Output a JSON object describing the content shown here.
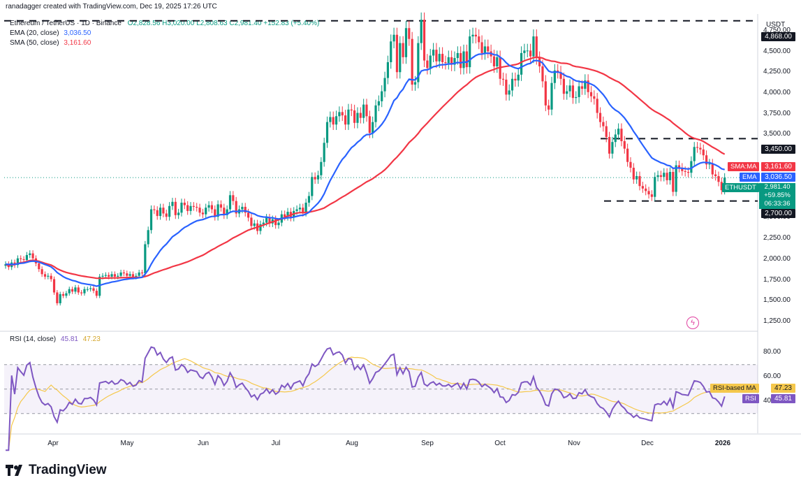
{
  "header": {
    "created_by": "ranadagger created with TradingView.com, Dec 19, 2025 17:26 UTC",
    "symbol_line": "Ethereum / TetherUS · 1D · Binance",
    "ohlc": "O2,828.56  H3,020.00  L2,808.63  C2,981.40  +152.83 (+5.40%)",
    "ema_label": "EMA (20, close)",
    "ema_value": "3,036.50",
    "sma_label": "SMA (50, close)",
    "sma_value": "3,161.60"
  },
  "axis": {
    "currency": "USDT",
    "price_ticks": [
      "4,750.00",
      "4,500.00",
      "4,250.00",
      "4,000.00",
      "3,750.00",
      "3,500.00",
      "2,500.00",
      "2,250.00",
      "2,000.00",
      "1,750.00",
      "1,500.00",
      "1,250.00"
    ],
    "rsi_ticks": [
      "80.00",
      "60.00",
      "40.00"
    ],
    "x_ticks": [
      "Apr",
      "May",
      "Jun",
      "Jul",
      "Aug",
      "Sep",
      "Oct",
      "Nov",
      "Dec",
      "2026"
    ]
  },
  "price_labels": {
    "level_high": "4,868.00",
    "level_resist": "3,450.00",
    "level_support": "2,700.00",
    "sma_tag": "SMA:MA",
    "sma_val": "3,161.60",
    "ema_tag": "EMA",
    "ema_val": "3,036.50",
    "sym_tag": "ETHUSDT",
    "sym_val": "2,981.40",
    "change": "+59.85%",
    "countdown": "06:33:36"
  },
  "rsi_panel": {
    "label": "RSI (14, close)",
    "value1": "45.81",
    "value2": "47.23",
    "ma_tag": "RSI-based MA",
    "ma_val": "47.23",
    "rsi_tag": "RSI",
    "rsi_val": "45.81"
  },
  "brand": {
    "name": "TradingView"
  },
  "colors": {
    "up": "#089981",
    "down": "#f23645",
    "ema": "#2962ff",
    "sma": "#f23645",
    "rsi": "#7e57c2",
    "rsi_ma": "#f5c84c"
  },
  "chart_data": {
    "type": "candlestick",
    "symbol": "ETHUSDT",
    "timeframe": "1D",
    "x_range": [
      "2025-03-15",
      "2026-01-10"
    ],
    "ylim": [
      1150,
      4950
    ],
    "close": [
      1940,
      1905,
      1960,
      1930,
      2010,
      2000,
      1990,
      2050,
      2070,
      2010,
      1950,
      1880,
      1820,
      1790,
      1800,
      1760,
      1600,
      1470,
      1580,
      1560,
      1590,
      1640,
      1610,
      1660,
      1600,
      1590,
      1640,
      1640,
      1650,
      1620,
      1560,
      1790,
      1800,
      1810,
      1790,
      1820,
      1790,
      1800,
      1840,
      1830,
      1800,
      1820,
      1790,
      1800,
      1840,
      1830,
      2180,
      2350,
      2600,
      2590,
      2520,
      2620,
      2550,
      2510,
      2640,
      2690,
      2530,
      2560,
      2680,
      2650,
      2580,
      2640,
      2630,
      2620,
      2560,
      2540,
      2620,
      2650,
      2600,
      2510,
      2660,
      2620,
      2530,
      2600,
      2770,
      2700,
      2550,
      2600,
      2630,
      2560,
      2500,
      2400,
      2430,
      2340,
      2420,
      2440,
      2500,
      2430,
      2480,
      2410,
      2440,
      2540,
      2510,
      2570,
      2500,
      2580,
      2600,
      2620,
      2560,
      2680,
      2760,
      2990,
      2960,
      3010,
      3170,
      3400,
      3650,
      3710,
      3620,
      3720,
      3770,
      3730,
      3620,
      3800,
      3790,
      3640,
      3760,
      3700,
      3860,
      3720,
      3520,
      3650,
      3850,
      3900,
      4020,
      4180,
      4370,
      4620,
      4700,
      4250,
      4600,
      4430,
      4780,
      4650,
      4100,
      4130,
      4600,
      4880,
      4390,
      4300,
      4450,
      4520,
      4380,
      4470,
      4370,
      4360,
      4430,
      4340,
      4420,
      4480,
      4300,
      4500,
      4310,
      4680,
      4700,
      4680,
      4610,
      4480,
      4560,
      4500,
      4440,
      4320,
      4430,
      4170,
      4160,
      3980,
      4030,
      4170,
      4150,
      4220,
      4480,
      4510,
      4510,
      4440,
      4680,
      4420,
      4320,
      4140,
      3850,
      3800,
      4120,
      4270,
      4250,
      4170,
      3990,
      4020,
      4090,
      3940,
      3950,
      4080,
      4050,
      4150,
      4010,
      3960,
      3930,
      3760,
      3650,
      3600,
      3470,
      3270,
      3410,
      3500,
      3570,
      3420,
      3330,
      3170,
      3100,
      2960,
      3000,
      2880,
      2850,
      2820,
      2780,
      2750,
      2990,
      3010,
      2990,
      3040,
      2950,
      3050,
      2810,
      3130,
      3100,
      3060,
      3050,
      3040,
      3180,
      3350,
      3340,
      3320,
      3250,
      3140,
      3150,
      3020,
      3000,
      2930,
      2830,
      2981
    ]
  }
}
